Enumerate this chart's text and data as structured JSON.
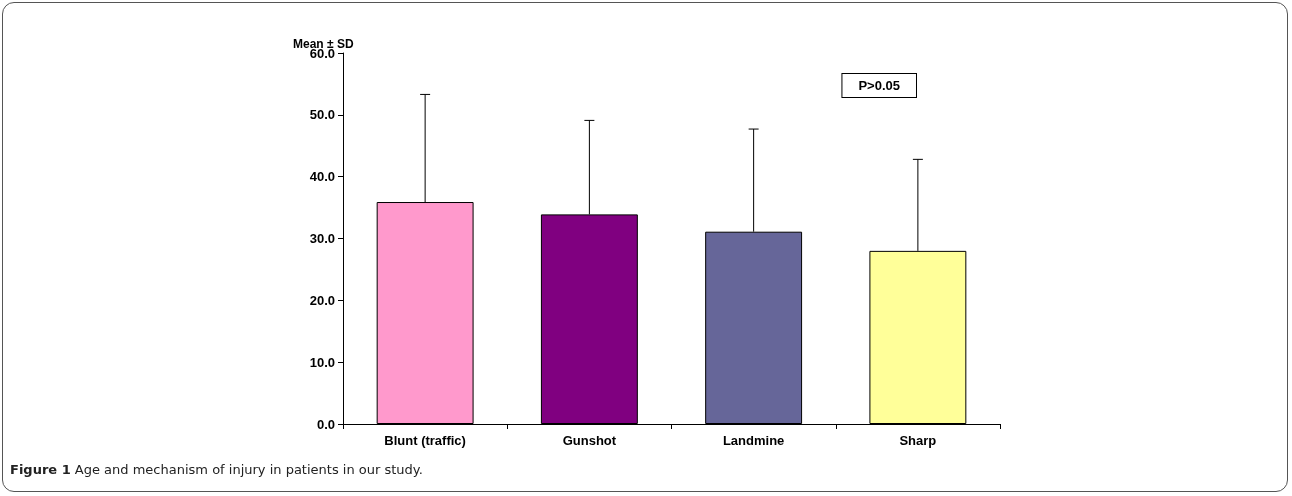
{
  "chart_data": {
    "type": "bar",
    "ylabel": "Mean ± SD",
    "categories": [
      "Blunt (traffic)",
      "Gunshot",
      "Landmine",
      "Sharp"
    ],
    "values": [
      35.9,
      33.9,
      31.1,
      28.0
    ],
    "colors": [
      "#ff99cc",
      "#800080",
      "#666699",
      "#ffff99"
    ],
    "errors": [
      [
        35.9,
        53.3
      ],
      [
        33.9,
        49.1
      ],
      [
        31.1,
        47.7
      ],
      [
        28.0,
        42.8
      ]
    ],
    "ylim": [
      0,
      60
    ],
    "yticks": [
      {
        "value": 0,
        "label": "0.0"
      },
      {
        "value": 10,
        "label": "10.0"
      },
      {
        "value": 20,
        "label": "20.0"
      },
      {
        "value": 30,
        "label": "30.0"
      },
      {
        "value": 40,
        "label": "40.0"
      },
      {
        "value": 50,
        "label": "50.0"
      },
      {
        "value": 60,
        "label": "60.0"
      }
    ],
    "grid": false,
    "annotations": [
      "P>0.05",
      "Figure 1 Age and mechanism of injury in patients in our study."
    ]
  }
}
